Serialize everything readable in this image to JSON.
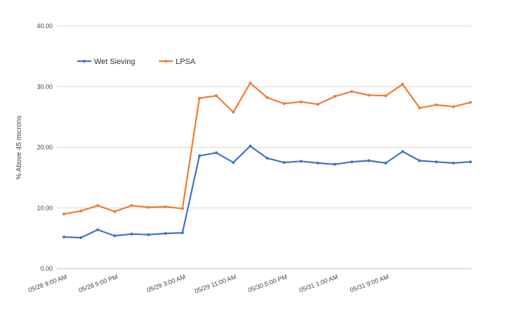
{
  "chart_data": {
    "type": "line",
    "ylabel": "% Above 45 microns",
    "ylim": [
      0,
      40
    ],
    "y_ticks": [
      "0.00",
      "10.00",
      "20.00",
      "30.00",
      "40.00"
    ],
    "x_tick_labels": [
      "05/28 9:00 AM",
      "05/28 5:00 PM",
      "05/29 3:00 AM",
      "05/29 11:00 AM",
      "05/30 5:00 PM",
      "05/31 1:00 AM",
      "05/31 9:00 AM"
    ],
    "x_tick_indices": [
      0,
      3,
      7,
      10,
      13,
      16,
      19
    ],
    "grid": "horizontal",
    "legend_position": "top-left",
    "series": [
      {
        "name": "Wet Sieving",
        "color": "#4472C4",
        "values": [
          5.2,
          5.1,
          6.4,
          5.4,
          5.7,
          5.6,
          5.8,
          5.9,
          18.6,
          19.1,
          17.5,
          20.2,
          18.2,
          17.5,
          17.7,
          17.4,
          17.2,
          17.6,
          17.8,
          17.4,
          19.3,
          17.8,
          17.6,
          17.4,
          17.6
        ]
      },
      {
        "name": "LPSA",
        "color": "#ED7D31",
        "values": [
          9.0,
          9.5,
          10.4,
          9.4,
          10.4,
          10.1,
          10.2,
          9.9,
          28.1,
          28.5,
          25.8,
          30.6,
          28.2,
          27.2,
          27.5,
          27.1,
          28.4,
          29.2,
          28.6,
          28.5,
          30.4,
          26.5,
          27.0,
          26.7,
          27.4
        ]
      }
    ]
  }
}
